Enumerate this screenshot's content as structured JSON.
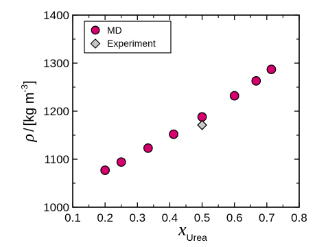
{
  "chart_data": {
    "type": "scatter",
    "xlim": [
      0.1,
      0.8
    ],
    "ylim": [
      1000,
      1400
    ],
    "x_ticks": [
      "0.1",
      "0.2",
      "0.3",
      "0.4",
      "0.5",
      "0.6",
      "0.7",
      "0.8"
    ],
    "y_ticks": [
      "1000",
      "1100",
      "1200",
      "1300",
      "1400"
    ],
    "ylabel": {
      "symbol": "ρ",
      "slash": "/",
      "unit": "[kg m",
      "exponent": "-3",
      "close": "]"
    },
    "xlabel": {
      "symbol": "x",
      "subscript": "Urea"
    },
    "legend_position": "top-left",
    "grid": false,
    "series": [
      {
        "name": "MD",
        "marker": "circle",
        "color": "#d6006f",
        "edge": "#000000",
        "points": [
          {
            "x": 0.2,
            "y": 1077
          },
          {
            "x": 0.25,
            "y": 1094
          },
          {
            "x": 0.333,
            "y": 1123
          },
          {
            "x": 0.412,
            "y": 1152
          },
          {
            "x": 0.5,
            "y": 1188
          },
          {
            "x": 0.6,
            "y": 1232
          },
          {
            "x": 0.667,
            "y": 1263
          },
          {
            "x": 0.714,
            "y": 1287
          }
        ]
      },
      {
        "name": "Experiment",
        "marker": "diamond",
        "color": "#c8c8c8",
        "edge": "#000000",
        "points": [
          {
            "x": 0.5,
            "y": 1171
          }
        ]
      }
    ]
  }
}
